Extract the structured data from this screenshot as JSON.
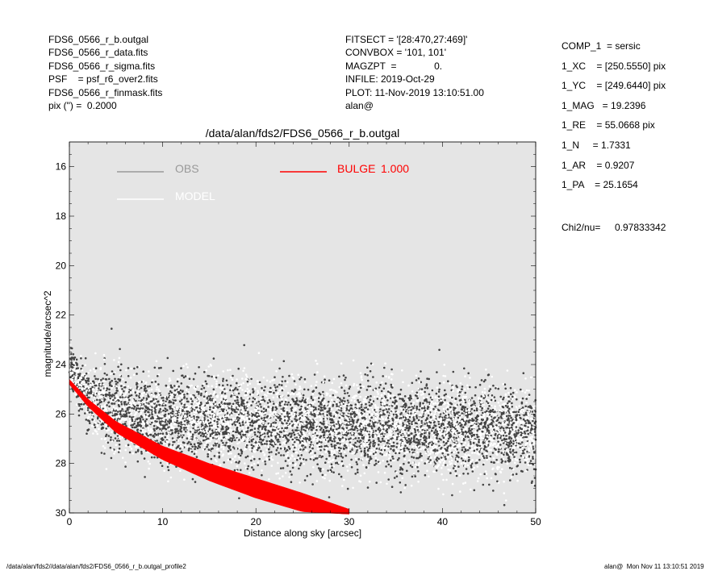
{
  "header": {
    "left": [
      "FDS6_0566_r_b.outgal",
      "FDS6_0566_r_data.fits",
      "FDS6_0566_r_sigma.fits",
      "PSF    = psf_r6_over2.fits",
      "FDS6_0566_r_finmask.fits",
      "pix (\") =  0.2000"
    ],
    "middle": [
      "FITSECT = '[28:470,27:469]'",
      "CONVBOX = '101, 101'",
      "MAGZPT  =              0.",
      "INFILE: 2019-Oct-29",
      "PLOT: 11-Nov-2019 13:10:51.00",
      "alan@"
    ]
  },
  "params": [
    "COMP_1  = sersic",
    "1_XC    = [250.5550] pix",
    "1_YC    = [249.6440] pix",
    "1_MAG   = 19.2396",
    "1_RE    = 55.0668 pix",
    "1_N     = 1.7331",
    "1_AR    = 0.9207",
    "1_PA    = 25.1654"
  ],
  "chi2": {
    "label": "Chi2/nu=",
    "value": "0.97833342"
  },
  "footer": {
    "left": "/data/alan/fds2//data/alan/fds2/FDS6_0566_r_b.outgal_profile2",
    "right": "alan@  Mon Nov 11 13:10:51 2019"
  },
  "colors": {
    "plot_bg": "#e5e5e5",
    "obs": "#444444",
    "obs_legend": "#999999",
    "model": "#ffffff",
    "bulge": "#ff0000"
  },
  "chart_data": {
    "type": "scatter",
    "title": "/data/alan/fds2/FDS6_0566_r_b.outgal",
    "xlabel": "Distance along sky [arcsec]",
    "ylabel": "magnitude/arcsec^2",
    "xlim": [
      0,
      50
    ],
    "ylim": [
      30,
      15
    ],
    "y_inverted": true,
    "x_ticks": [
      0,
      10,
      20,
      30,
      40,
      50
    ],
    "y_ticks": [
      16,
      18,
      20,
      22,
      24,
      26,
      28,
      30
    ],
    "legend": [
      {
        "name": "OBS",
        "color": "#999999"
      },
      {
        "name": "MODEL",
        "color": "#ffffff"
      },
      {
        "name": "BULGE",
        "value": "1.000",
        "color": "#ff0000"
      }
    ],
    "series": [
      {
        "name": "OBS",
        "color": "#444444",
        "profile": {
          "x": [
            0.2,
            0.5,
            1,
            2,
            3,
            5,
            8,
            10,
            15,
            20,
            30,
            40,
            50
          ],
          "y": [
            24.0,
            24.3,
            24.8,
            25.2,
            25.5,
            25.8,
            26.0,
            26.1,
            26.2,
            26.3,
            26.4,
            26.5,
            26.6
          ]
        },
        "scatter_sigma_mag": 0.9,
        "n_points": 4200
      },
      {
        "name": "MODEL",
        "color": "#ffffff",
        "profile": {
          "x": [
            0.2,
            0.5,
            1,
            2,
            3,
            5,
            8,
            10,
            15,
            20,
            30,
            40,
            50
          ],
          "y": [
            24.0,
            24.3,
            24.8,
            25.2,
            25.5,
            25.8,
            26.0,
            26.1,
            26.2,
            26.3,
            26.4,
            26.5,
            26.6
          ]
        },
        "scatter_sigma_mag": 0.9,
        "n_points": 4200
      },
      {
        "name": "BULGE",
        "color": "#ff0000",
        "band_x": [
          0,
          2,
          5,
          10,
          15,
          20,
          25,
          30
        ],
        "band_y_upper": [
          24.6,
          25.4,
          26.3,
          27.3,
          28.0,
          28.6,
          29.2,
          29.85
        ],
        "band_y_lower": [
          24.8,
          25.7,
          26.75,
          27.85,
          28.7,
          29.4,
          29.95,
          30.05
        ]
      }
    ]
  }
}
